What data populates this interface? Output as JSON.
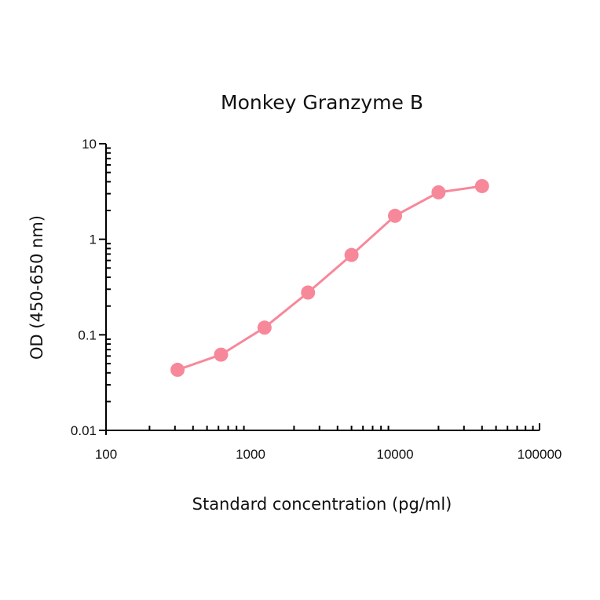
{
  "chart_data": {
    "type": "line",
    "title": "Monkey Granzyme B",
    "xlabel": "Standard concentration (pg/ml)",
    "ylabel": "OD (450-650 nm)",
    "xscale": "log",
    "yscale": "log",
    "xlim": [
      100,
      100000
    ],
    "ylim": [
      0.01,
      10
    ],
    "xticks": [
      "100",
      "1000",
      "10000",
      "100000"
    ],
    "yticks": [
      "0.01",
      "0.1",
      "1",
      "10"
    ],
    "grid": false,
    "legend": null,
    "series": [
      {
        "name": "Monkey Granzyme B",
        "color": "#f7889a",
        "marker": "circle",
        "x": [
          312.5,
          625,
          1250,
          2500,
          5000,
          10000,
          20000,
          40000
        ],
        "y": [
          0.043,
          0.062,
          0.119,
          0.277,
          0.685,
          1.76,
          3.1,
          3.6
        ]
      }
    ]
  }
}
